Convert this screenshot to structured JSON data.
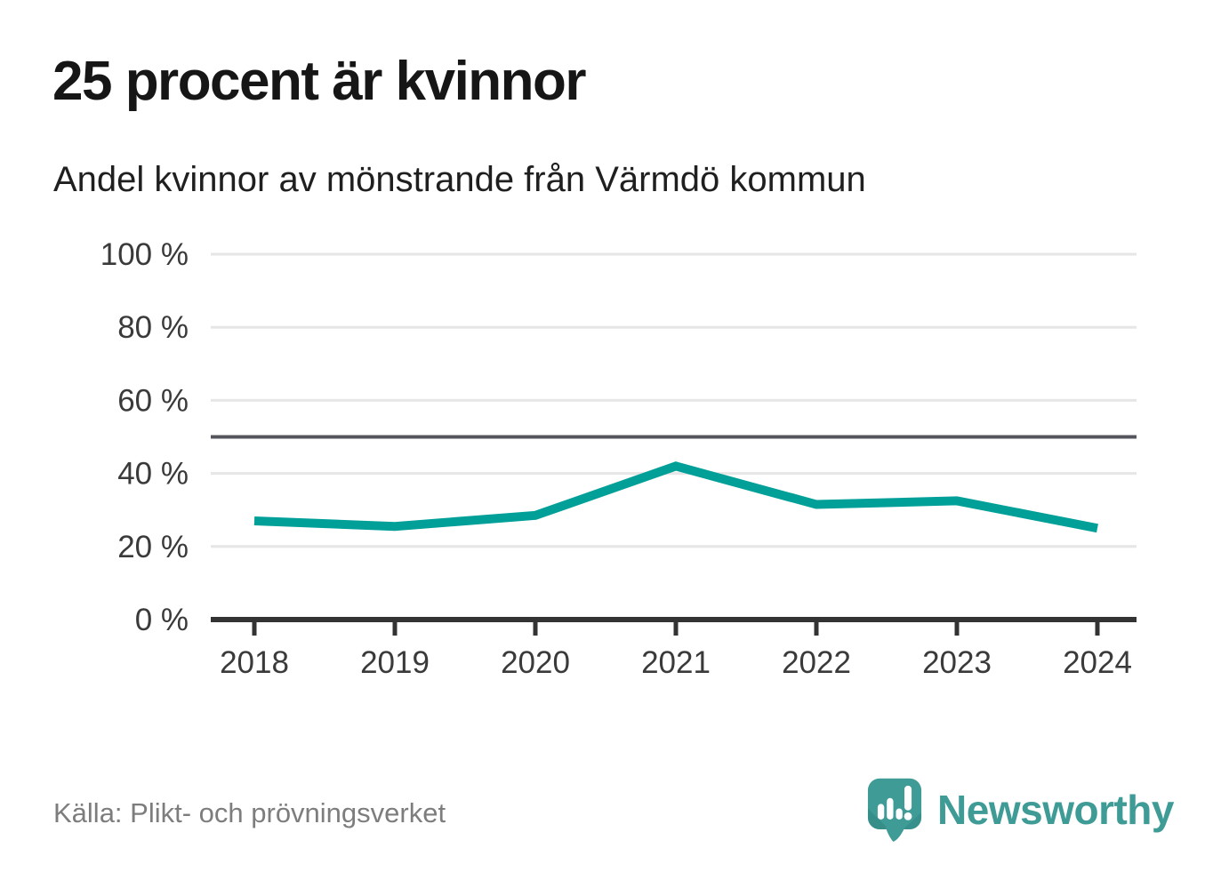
{
  "header": {
    "title": "25 procent är kvinnor",
    "subtitle": "Andel kvinnor av mönstrande från Värmdö kommun"
  },
  "chart_data": {
    "type": "line",
    "title": "25 procent är kvinnor",
    "subtitle": "Andel kvinnor av mönstrande från Värmdö kommun",
    "categories": [
      "2018",
      "2019",
      "2020",
      "2021",
      "2022",
      "2023",
      "2024"
    ],
    "series": [
      {
        "name": "Andel kvinnor av mönstrande",
        "values": [
          27,
          25.5,
          28.5,
          42,
          31.5,
          32.5,
          25
        ]
      }
    ],
    "unit": "%",
    "ylim": [
      0,
      100
    ],
    "yticks": [
      0,
      20,
      40,
      60,
      80,
      100
    ],
    "ytick_labels": [
      "0 %",
      "20 %",
      "40 %",
      "60 %",
      "80 %",
      "100 %"
    ],
    "reference_line": 50,
    "grid": "horizontal",
    "legend": "none",
    "line_color": "#00a099"
  },
  "footer": {
    "source": "Källa: Plikt- och prövningsverket",
    "logo_text": "Newsworthy",
    "logo_icon": "newsworthy-speech-bubble-bar-chart-icon"
  },
  "colors": {
    "accent_teal": "#00a099",
    "logo_teal": "#3f9b96",
    "logo_teal_dark": "#2f837e",
    "gridline": "#e6e6e6",
    "reference_line": "#55555e",
    "axis": "#333333",
    "title_text": "#161616",
    "subtitle_text": "#1f1f1f",
    "axis_text": "#3a3a3a",
    "source_text": "#7d7d7d"
  }
}
